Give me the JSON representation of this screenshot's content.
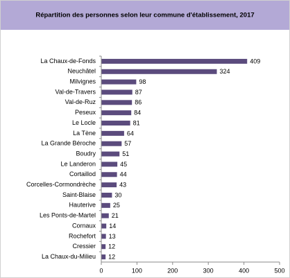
{
  "chart_data": {
    "type": "barh",
    "title": "Répartition des personnes selon leur commune d'établissement, 2017",
    "categories": [
      "La Chaux-de-Fonds",
      "Neuchâtel",
      "Milvignes",
      "Val-de-Travers",
      "Val-de-Ruz",
      "Peseux",
      "Le Locle",
      "La Tène",
      "La Grande Béroche",
      "Boudry",
      "Le Landeron",
      "Cortaillod",
      "Corcelles-Cormondrèche",
      "Saint-Blaise",
      "Hauterive",
      "Les Ponts-de-Martel",
      "Cornaux",
      "Rochefort",
      "Cressier",
      "La Chaux-du-Milieu"
    ],
    "values": [
      409,
      324,
      98,
      87,
      86,
      84,
      81,
      64,
      57,
      51,
      45,
      44,
      43,
      30,
      25,
      21,
      14,
      13,
      12,
      12
    ],
    "color": "#5b4b7d",
    "xlim": [
      0,
      500
    ],
    "xticks": [
      0,
      100,
      200,
      300,
      400,
      500
    ],
    "grid": false
  }
}
